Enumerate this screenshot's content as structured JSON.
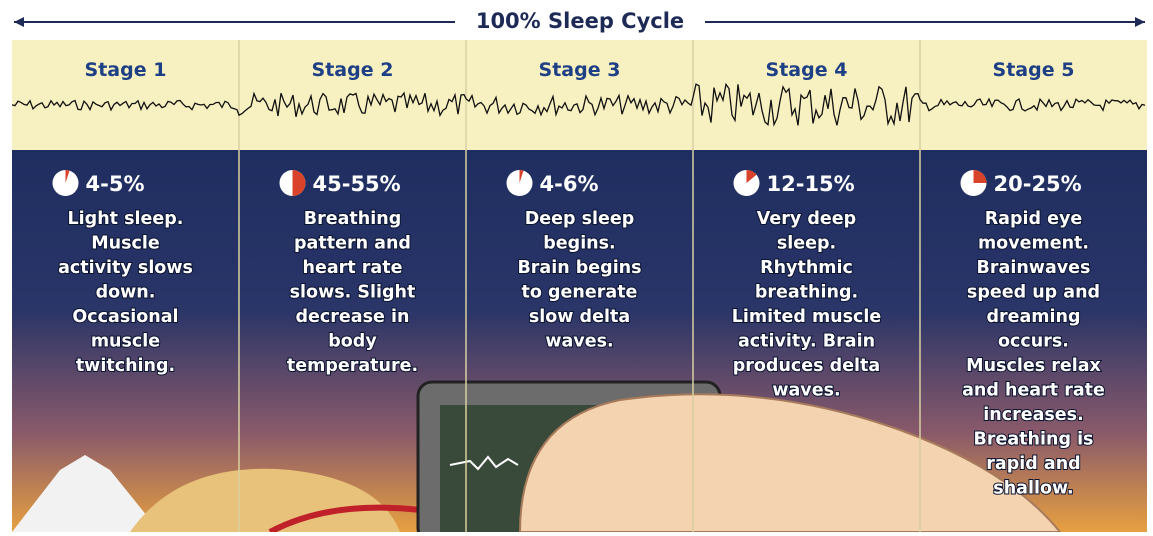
{
  "header": {
    "title": "100% Sleep Cycle"
  },
  "stages": [
    {
      "name": "Stage 1",
      "percent": "4-5%",
      "description": [
        "Light sleep.",
        "Muscle",
        "activity slows",
        "down.",
        "Occasional",
        "muscle",
        "twitching."
      ]
    },
    {
      "name": "Stage 2",
      "percent": "45-55%",
      "description": [
        "Breathing",
        "pattern and",
        "heart rate",
        "slows. Slight",
        "decrease in",
        "body",
        "temperature."
      ]
    },
    {
      "name": "Stage 3",
      "percent": "4-6%",
      "description": [
        "Deep sleep",
        "begins.",
        "Brain begins",
        "to generate",
        "slow delta",
        "waves."
      ]
    },
    {
      "name": "Stage 4",
      "percent": "12-15%",
      "description": [
        "Very deep",
        "sleep.",
        "Rhythmic",
        "breathing.",
        "Limited muscle",
        "activity. Brain",
        "produces delta",
        "waves."
      ]
    },
    {
      "name": "Stage 5",
      "percent": "20-25%",
      "description": [
        "Rapid eye",
        "movement.",
        "Brainwaves",
        "speed up and",
        "dreaming",
        "occurs.",
        "Muscles relax",
        "and heart rate",
        "increases.",
        "Breathing is",
        "rapid and",
        "shallow."
      ]
    }
  ]
}
